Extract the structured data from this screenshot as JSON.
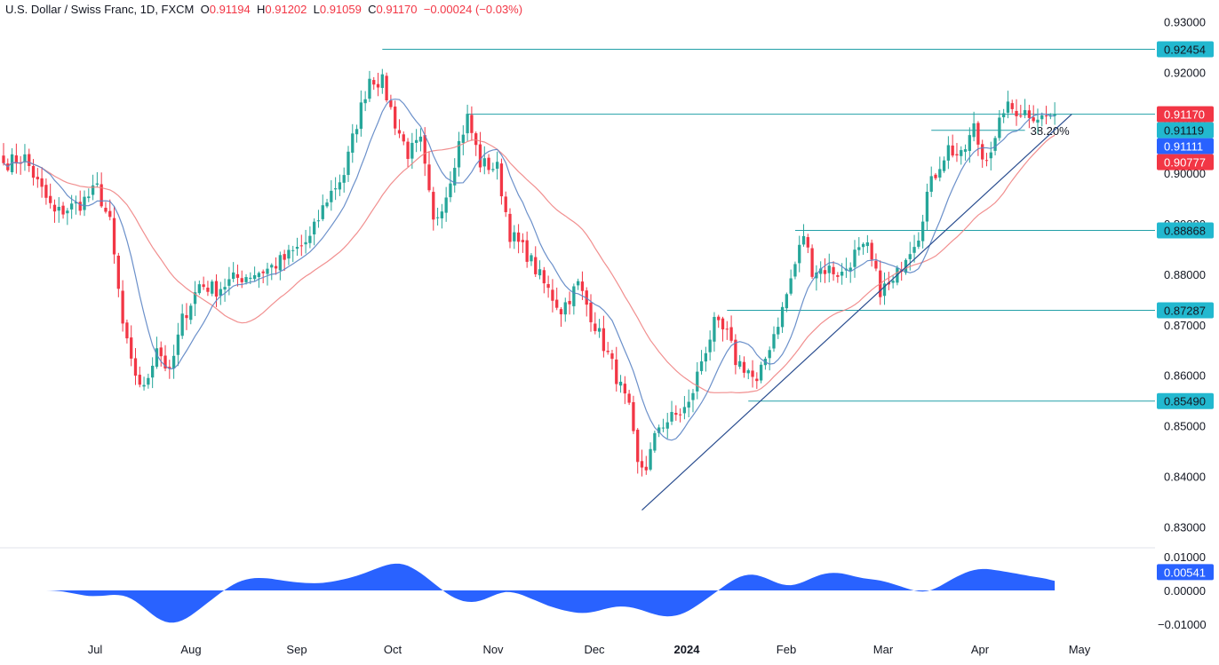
{
  "header": {
    "symbol": "U.S. Dollar / Swiss Franc, 1D, FXCM",
    "o_label": "O",
    "o_value": "0.91194",
    "h_label": "H",
    "h_value": "0.91202",
    "l_label": "L",
    "l_value": "0.91059",
    "c_label": "C",
    "c_value": "0.91170",
    "change": "−0.00024 (−0.03%)"
  },
  "colors": {
    "up": "#26a69a",
    "down": "#f23645",
    "ma_fast": "#5b84c4",
    "ma_slow": "#ef7b7b",
    "level": "#22a0a8",
    "trend": "#2a4d8f",
    "osc": "#2962ff",
    "tag_teal": "#22b8cf"
  },
  "chart_data": {
    "type": "candlestick",
    "symbol": "U.S. Dollar / Swiss Franc",
    "timeframe": "1D",
    "months": [
      "Jul",
      "Aug",
      "Sep",
      "Oct",
      "Nov",
      "Dec",
      "2024",
      "Feb",
      "Mar",
      "Apr",
      "May"
    ],
    "price_ticks": [
      "0.93000",
      "0.92000",
      "0.91000",
      "0.90000",
      "0.89000",
      "0.88000",
      "0.87000",
      "0.86000",
      "0.85000",
      "0.84000",
      "0.83000"
    ],
    "osc_ticks": [
      "0.01000",
      "0.00000",
      "−0.01000"
    ],
    "ylim": [
      0.8262,
      0.9343
    ],
    "osc_ylim": [
      -0.0123,
      0.0123
    ],
    "anchors": [
      {
        "i": 0,
        "c": 0.902
      },
      {
        "i": 5,
        "c": 0.903
      },
      {
        "i": 8,
        "c": 0.898
      },
      {
        "i": 12,
        "c": 0.892
      },
      {
        "i": 18,
        "c": 0.894
      },
      {
        "i": 22,
        "c": 0.897
      },
      {
        "i": 25,
        "c": 0.89
      },
      {
        "i": 28,
        "c": 0.87
      },
      {
        "i": 30,
        "c": 0.862
      },
      {
        "i": 33,
        "c": 0.857
      },
      {
        "i": 36,
        "c": 0.866
      },
      {
        "i": 39,
        "c": 0.86
      },
      {
        "i": 42,
        "c": 0.871
      },
      {
        "i": 46,
        "c": 0.878
      },
      {
        "i": 50,
        "c": 0.877
      },
      {
        "i": 54,
        "c": 0.879
      },
      {
        "i": 58,
        "c": 0.88
      },
      {
        "i": 62,
        "c": 0.881
      },
      {
        "i": 66,
        "c": 0.883
      },
      {
        "i": 69,
        "c": 0.885
      },
      {
        "i": 72,
        "c": 0.887
      },
      {
        "i": 76,
        "c": 0.895
      },
      {
        "i": 80,
        "c": 0.9
      },
      {
        "i": 83,
        "c": 0.91
      },
      {
        "i": 86,
        "c": 0.919
      },
      {
        "i": 89,
        "c": 0.918
      },
      {
        "i": 92,
        "c": 0.91
      },
      {
        "i": 95,
        "c": 0.904
      },
      {
        "i": 98,
        "c": 0.906
      },
      {
        "i": 101,
        "c": 0.89
      },
      {
        "i": 104,
        "c": 0.896
      },
      {
        "i": 107,
        "c": 0.906
      },
      {
        "i": 109,
        "c": 0.911
      },
      {
        "i": 112,
        "c": 0.902
      },
      {
        "i": 116,
        "c": 0.901
      },
      {
        "i": 119,
        "c": 0.888
      },
      {
        "i": 123,
        "c": 0.884
      },
      {
        "i": 127,
        "c": 0.878
      },
      {
        "i": 131,
        "c": 0.873
      },
      {
        "i": 135,
        "c": 0.878
      },
      {
        "i": 139,
        "c": 0.87
      },
      {
        "i": 143,
        "c": 0.862
      },
      {
        "i": 147,
        "c": 0.853
      },
      {
        "i": 149,
        "c": 0.842
      },
      {
        "i": 151,
        "c": 0.842
      },
      {
        "i": 154,
        "c": 0.85
      },
      {
        "i": 158,
        "c": 0.852
      },
      {
        "i": 161,
        "c": 0.854
      },
      {
        "i": 164,
        "c": 0.863
      },
      {
        "i": 167,
        "c": 0.87
      },
      {
        "i": 170,
        "c": 0.868
      },
      {
        "i": 172,
        "c": 0.863
      },
      {
        "i": 175,
        "c": 0.861
      },
      {
        "i": 177,
        "c": 0.858
      },
      {
        "i": 180,
        "c": 0.866
      },
      {
        "i": 183,
        "c": 0.873
      },
      {
        "i": 186,
        "c": 0.882
      },
      {
        "i": 188,
        "c": 0.888
      },
      {
        "i": 190,
        "c": 0.881
      },
      {
        "i": 194,
        "c": 0.881
      },
      {
        "i": 197,
        "c": 0.88
      },
      {
        "i": 200,
        "c": 0.884
      },
      {
        "i": 203,
        "c": 0.885
      },
      {
        "i": 206,
        "c": 0.877
      },
      {
        "i": 209,
        "c": 0.878
      },
      {
        "i": 212,
        "c": 0.884
      },
      {
        "i": 215,
        "c": 0.888
      },
      {
        "i": 217,
        "c": 0.896
      },
      {
        "i": 220,
        "c": 0.902
      },
      {
        "i": 222,
        "c": 0.905
      },
      {
        "i": 225,
        "c": 0.903
      },
      {
        "i": 228,
        "c": 0.909
      },
      {
        "i": 230,
        "c": 0.903
      },
      {
        "i": 233,
        "c": 0.906
      },
      {
        "i": 235,
        "c": 0.913
      },
      {
        "i": 238,
        "c": 0.9125
      },
      {
        "i": 241,
        "c": 0.912
      },
      {
        "i": 244,
        "c": 0.911
      },
      {
        "i": 247,
        "c": 0.9117
      }
    ],
    "sma_fast_period": 10,
    "sma_slow_period": 30,
    "horizontal_levels": [
      {
        "value": 0.92454,
        "label": "0.92454",
        "from_i": 89
      },
      {
        "value": 0.9117,
        "label": "0.91170",
        "from_i": 109
      },
      {
        "value": 0.88868,
        "label": "0.88868",
        "from_i": 186
      },
      {
        "value": 0.87287,
        "label": "0.87287",
        "from_i": 170
      },
      {
        "value": 0.8549,
        "label": "0.85490",
        "from_i": 175
      }
    ],
    "fib_level": {
      "value": 0.9085,
      "label": "38.20%",
      "from_i": 218,
      "to_i": 240
    },
    "trendline": {
      "from": {
        "i": 150,
        "v": 0.8333
      },
      "to": {
        "i": 251,
        "v": 0.9117
      }
    },
    "price_tags": [
      {
        "label": "0.92454",
        "value": 0.92454,
        "style": "teal"
      },
      {
        "label": "0.91170",
        "value": 0.9117,
        "style": "red"
      },
      {
        "label": "0.91119",
        "value": 0.91119,
        "style": "teal"
      },
      {
        "label": "0.91111",
        "value": 0.91111,
        "style": "blue"
      },
      {
        "label": "0.90777",
        "value": 0.90777,
        "style": "red"
      },
      {
        "label": "0.88868",
        "value": 0.88868,
        "style": "teal"
      },
      {
        "label": "0.87287",
        "value": 0.87287,
        "style": "teal"
      },
      {
        "label": "0.85490",
        "value": 0.8549,
        "style": "teal"
      }
    ],
    "oscillator": {
      "last_label": "0.00541",
      "last_value": 0.00541
    }
  }
}
